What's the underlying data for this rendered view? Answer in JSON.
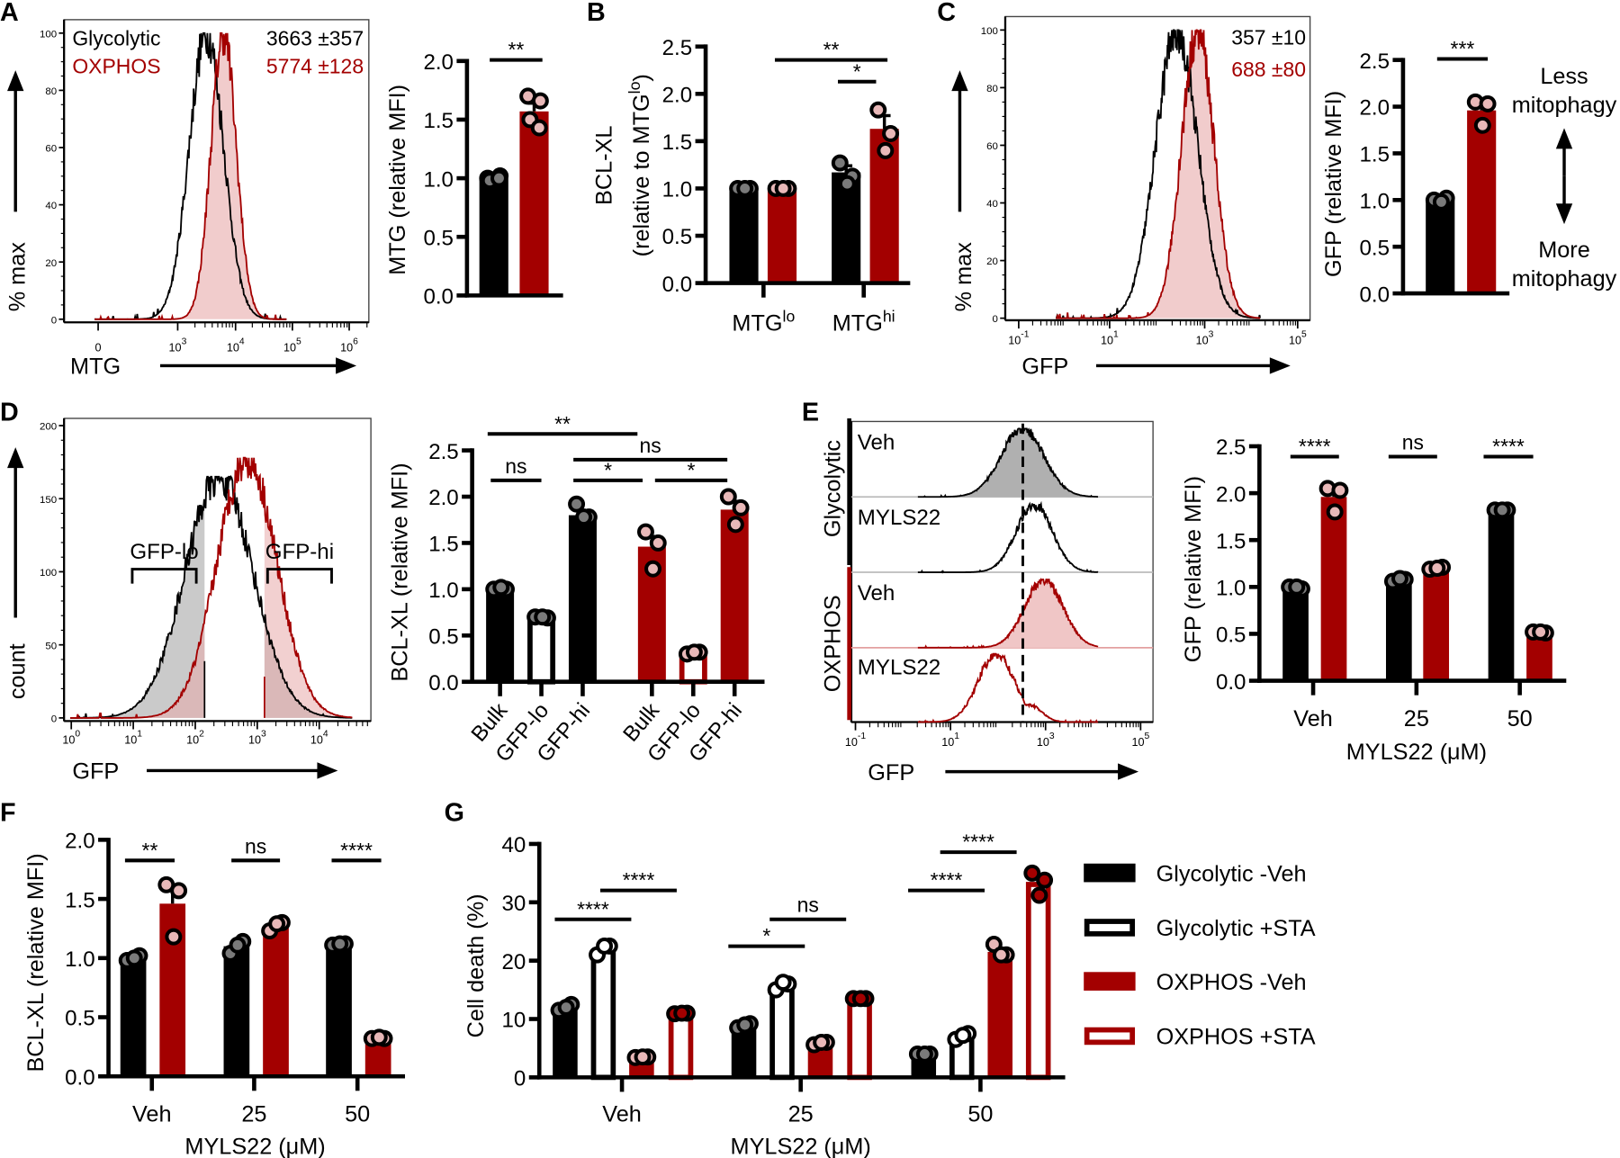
{
  "panel_labels": [
    "A",
    "B",
    "C",
    "D",
    "E",
    "F",
    "G"
  ],
  "colors": {
    "glycolytic": "#000000",
    "oxphos": "#a30000",
    "oxphos_fill": "#f0c6c6",
    "glyc_fill": "#b0b0b0",
    "point_glyc": "#7a7a7a",
    "point_oxphos": "#e8b8b8"
  },
  "chart_data": [
    {
      "id": "A-histogram",
      "type": "histogram",
      "xlabel": "MTG",
      "ylabel": "% max",
      "ylim": [
        0,
        100
      ],
      "yticks": [
        "0",
        "20",
        "40",
        "60",
        "80",
        "100"
      ],
      "xticks": [
        {
          "base": "0",
          "exp": ""
        },
        {
          "base": "10",
          "exp": "3"
        },
        {
          "base": "10",
          "exp": "4"
        },
        {
          "base": "10",
          "exp": "5"
        },
        {
          "base": "10",
          "exp": "6"
        }
      ],
      "series": [
        {
          "name": "Glycolytic",
          "mfi": "3663 ±357",
          "color": "#000000",
          "filled": false,
          "peak_log10": 3.5,
          "sd_log10": 0.3,
          "max": 100
        },
        {
          "name": "OXPHOS",
          "mfi": "5774 ±128",
          "color": "#a30000",
          "filled": true,
          "peak_log10": 3.8,
          "sd_log10": 0.22,
          "max": 100
        }
      ]
    },
    {
      "id": "A-bar",
      "type": "bar",
      "ylabel": [
        {
          "text": "MTG (relative MFI)"
        }
      ],
      "ylim": [
        0,
        2
      ],
      "yticks": [
        "0.0",
        "0.5",
        "1.0",
        "1.5",
        "2.0"
      ],
      "categories": [],
      "bars": [
        {
          "series": "Glycolytic",
          "style": "glyc",
          "value": 1.0,
          "err": 0.01,
          "points": [
            1.0,
            1.02,
            0.98,
            1.0
          ]
        },
        {
          "series": "OXPHOS",
          "style": "oxphos",
          "value": 1.57,
          "err": 0.07,
          "points": [
            1.7,
            1.66,
            1.5,
            1.43
          ]
        }
      ],
      "sig": [
        "**"
      ]
    },
    {
      "id": "B-bar",
      "type": "bar",
      "ylabel": [
        {
          "text": "BCL-XL"
        },
        {
          "text": "(relative to MTG",
          "sup": "lo",
          "tail": ")"
        }
      ],
      "ylim": [
        0,
        2.5
      ],
      "yticks": [
        "0.0",
        "0.5",
        "1.0",
        "1.5",
        "2.0",
        "2.5"
      ],
      "categories": [
        {
          "text": "MTG",
          "sup": "lo"
        },
        {
          "text": "MTG",
          "sup": "hi"
        }
      ],
      "bars": [
        {
          "series": "Glycolytic",
          "style": "glyc",
          "value": 1.0,
          "err": 0,
          "points": [
            1.0,
            1.0,
            1.0
          ]
        },
        {
          "series": "OXPHOS",
          "style": "oxphos",
          "value": 1.0,
          "err": 0,
          "points": [
            1.0,
            1.0,
            1.0
          ]
        },
        {
          "series": "Glycolytic",
          "style": "glyc",
          "value": 1.17,
          "err": 0.07,
          "points": [
            1.27,
            1.13,
            1.05
          ]
        },
        {
          "series": "OXPHOS",
          "style": "oxphos",
          "value": 1.63,
          "err": 0.14,
          "points": [
            1.83,
            1.58,
            1.4
          ]
        }
      ],
      "sig": [
        "**",
        "*"
      ]
    },
    {
      "id": "C-histogram",
      "type": "histogram",
      "xlabel": "GFP",
      "ylabel": "% max",
      "ylim": [
        0,
        100
      ],
      "yticks": [
        "0",
        "20",
        "40",
        "60",
        "80",
        "100"
      ],
      "xticks": [
        {
          "base": "10",
          "exp": "-1"
        },
        {
          "base": "10",
          "exp": "1"
        },
        {
          "base": "10",
          "exp": "3"
        },
        {
          "base": "10",
          "exp": "5"
        }
      ],
      "series": [
        {
          "name": "Glycolytic",
          "mfi": "357 ±10",
          "color": "#000000",
          "filled": false,
          "peak_log10": 2.4,
          "sd_log10": 0.45,
          "max": 100
        },
        {
          "name": "OXPHOS",
          "mfi": "688 ±80",
          "color": "#a30000",
          "filled": true,
          "peak_log10": 2.85,
          "sd_log10": 0.35,
          "max": 100
        }
      ]
    },
    {
      "id": "C-bar",
      "type": "bar",
      "ylabel": [
        {
          "text": "GFP (relative MFI)"
        }
      ],
      "ylim": [
        0,
        2.5
      ],
      "yticks": [
        "0.0",
        "0.5",
        "1.0",
        "1.5",
        "2.0",
        "2.5"
      ],
      "categories": [],
      "bars": [
        {
          "series": "Glycolytic",
          "style": "glyc",
          "value": 1.0,
          "err": 0.01,
          "points": [
            1.0,
            1.02,
            0.98
          ]
        },
        {
          "series": "OXPHOS",
          "style": "oxphos",
          "value": 1.96,
          "err": 0.07,
          "points": [
            2.05,
            2.03,
            1.8
          ]
        }
      ],
      "sig": [
        "***"
      ],
      "annotation": {
        "top": [
          "Less",
          "mitophagy"
        ],
        "bottom": [
          "More",
          "mitophagy"
        ]
      }
    },
    {
      "id": "D-histogram",
      "type": "histogram",
      "xlabel": "GFP",
      "ylabel": "count",
      "ylim": [
        0,
        200
      ],
      "yticks": [
        "0",
        "50",
        "100",
        "150",
        "200"
      ],
      "xticks": [
        {
          "base": "10",
          "exp": "0"
        },
        {
          "base": "10",
          "exp": "1"
        },
        {
          "base": "10",
          "exp": "2"
        },
        {
          "base": "10",
          "exp": "3"
        },
        {
          "base": "10",
          "exp": "4"
        }
      ],
      "gates": [
        "GFP-lo",
        "GFP-hi"
      ],
      "series": [
        {
          "name": "Glycolytic",
          "color": "#000000",
          "filled": false,
          "peak_log10": 2.45,
          "sd_log10": 0.55,
          "max": 165
        },
        {
          "name": "OXPHOS",
          "color": "#a30000",
          "filled": false,
          "peak_log10": 2.9,
          "sd_log10": 0.48,
          "max": 178
        }
      ]
    },
    {
      "id": "D-bar",
      "type": "bar",
      "ylabel": [
        {
          "text": "BCL-XL (relative MFI)"
        }
      ],
      "ylim": [
        0,
        2.5
      ],
      "yticks": [
        "0.0",
        "0.5",
        "1.0",
        "1.5",
        "2.0",
        "2.5"
      ],
      "categories": [
        "Bulk",
        "GFP-lo",
        "GFP-hi",
        "Bulk",
        "GFP-lo",
        "GFP-hi"
      ],
      "bars": [
        {
          "series": "Glycolytic Bulk",
          "style": "glyc",
          "value": 1.0,
          "err": 0.01,
          "points": [
            1.0,
            1.0,
            1.02
          ]
        },
        {
          "series": "Glycolytic GFP-lo",
          "style": "glyc-open",
          "value": 0.7,
          "err": 0,
          "points": [
            0.7,
            0.69,
            0.7
          ]
        },
        {
          "series": "Glycolytic GFP-hi",
          "style": "glyc",
          "value": 1.8,
          "err": 0.04,
          "points": [
            1.92,
            1.78,
            1.78
          ]
        },
        {
          "series": "OXPHOS Bulk",
          "style": "oxphos",
          "value": 1.46,
          "err": 0.11,
          "points": [
            1.62,
            1.5,
            1.22
          ]
        },
        {
          "series": "OXPHOS GFP-lo",
          "style": "oxphos-open",
          "value": 0.32,
          "err": 0,
          "points": [
            0.3,
            0.32,
            0.32
          ]
        },
        {
          "series": "OXPHOS GFP-hi",
          "style": "oxphos",
          "value": 1.86,
          "err": 0.09,
          "points": [
            2.0,
            1.88,
            1.7
          ]
        }
      ],
      "sig": [
        "**",
        "ns",
        "ns",
        "*",
        "*"
      ]
    },
    {
      "id": "E-histogram",
      "type": "histogram",
      "xlabel": "GFP",
      "xticks": [
        {
          "base": "10",
          "exp": "-1"
        },
        {
          "base": "10",
          "exp": "1"
        },
        {
          "base": "10",
          "exp": "3"
        },
        {
          "base": "10",
          "exp": "5"
        }
      ],
      "groups": [
        "Glycolytic",
        "OXPHOS"
      ],
      "rows": [
        {
          "group": "Glycolytic",
          "label": "Veh",
          "color": "#000000",
          "filled": true,
          "peak_log10": 2.6,
          "sd_log10": 0.45
        },
        {
          "group": "Glycolytic",
          "label": "MYLS22",
          "color": "#000000",
          "filled": false,
          "peak_log10": 2.85,
          "sd_log10": 0.38
        },
        {
          "group": "OXPHOS",
          "label": "Veh",
          "color": "#a30000",
          "filled": true,
          "peak_log10": 3.05,
          "sd_log10": 0.4
        },
        {
          "group": "OXPHOS",
          "label": "MYLS22",
          "color": "#a30000",
          "filled": false,
          "peak_log10": 2.05,
          "sd_log10": 0.38
        }
      ]
    },
    {
      "id": "E-bar",
      "type": "bar",
      "ylabel": [
        {
          "text": "GFP (relative MFI)"
        }
      ],
      "xlabel": "MYLS22 (μM)",
      "ylim": [
        0,
        2.5
      ],
      "yticks": [
        "0.0",
        "0.5",
        "1.0",
        "1.5",
        "2.0",
        "2.5"
      ],
      "categories": [
        "Veh",
        "25",
        "50"
      ],
      "bars": [
        {
          "series": "Glycolytic",
          "style": "glyc",
          "value": 1.0,
          "err": 0.01,
          "points": [
            1.0,
            0.98,
            1.0
          ]
        },
        {
          "series": "OXPHOS",
          "style": "oxphos",
          "value": 1.96,
          "err": 0.07,
          "points": [
            2.05,
            2.03,
            1.8
          ]
        },
        {
          "series": "Glycolytic",
          "style": "glyc",
          "value": 1.08,
          "err": 0.01,
          "points": [
            1.06,
            1.08,
            1.09
          ]
        },
        {
          "series": "OXPHOS",
          "style": "oxphos",
          "value": 1.2,
          "err": 0.01,
          "points": [
            1.19,
            1.21,
            1.2
          ]
        },
        {
          "series": "Glycolytic",
          "style": "glyc",
          "value": 1.82,
          "err": 0.01,
          "points": [
            1.82,
            1.82,
            1.82
          ]
        },
        {
          "series": "OXPHOS",
          "style": "oxphos",
          "value": 0.52,
          "err": 0.01,
          "points": [
            0.52,
            0.51,
            0.52
          ]
        }
      ],
      "sig": [
        "****",
        "ns",
        "****"
      ]
    },
    {
      "id": "F-bar",
      "type": "bar",
      "ylabel": [
        {
          "text": "BCL-XL (relative MFI)"
        }
      ],
      "xlabel": "MYLS22 (μM)",
      "ylim": [
        0,
        2
      ],
      "yticks": [
        "0.0",
        "0.5",
        "1.0",
        "1.5",
        "2.0"
      ],
      "categories": [
        "Veh",
        "25",
        "50"
      ],
      "bars": [
        {
          "series": "Glycolytic",
          "style": "glyc",
          "value": 1.0,
          "err": 0.01,
          "points": [
            0.98,
            1.02,
            1.0
          ]
        },
        {
          "series": "OXPHOS",
          "style": "oxphos",
          "value": 1.46,
          "err": 0.13,
          "points": [
            1.62,
            1.57,
            1.18
          ]
        },
        {
          "series": "Glycolytic",
          "style": "glyc",
          "value": 1.1,
          "err": 0.03,
          "points": [
            1.04,
            1.14,
            1.11
          ]
        },
        {
          "series": "OXPHOS",
          "style": "oxphos",
          "value": 1.27,
          "err": 0.02,
          "points": [
            1.23,
            1.3,
            1.29
          ]
        },
        {
          "series": "Glycolytic",
          "style": "glyc",
          "value": 1.12,
          "err": 0.01,
          "points": [
            1.11,
            1.12,
            1.12
          ]
        },
        {
          "series": "OXPHOS",
          "style": "oxphos",
          "value": 0.32,
          "err": 0.01,
          "points": [
            0.32,
            0.32,
            0.33
          ]
        }
      ],
      "sig": [
        "**",
        "ns",
        "****"
      ]
    },
    {
      "id": "G-bar",
      "type": "bar",
      "ylabel": [
        {
          "text": "Cell death (%)"
        }
      ],
      "xlabel": "MYLS22 (μM)",
      "ylim": [
        0,
        40
      ],
      "yticks": [
        "0",
        "10",
        "20",
        "30",
        "40"
      ],
      "categories": [
        "Veh",
        "25",
        "50"
      ],
      "open_points_white": true,
      "legend": [
        {
          "name": "Glycolytic -Veh",
          "style": "glyc"
        },
        {
          "name": "Glycolytic +STA",
          "style": "glyc-open"
        },
        {
          "name": "OXPHOS -Veh",
          "style": "oxphos"
        },
        {
          "name": "OXPHOS +STA",
          "style": "oxphos-open"
        }
      ],
      "bars": [
        {
          "series": "Glycolytic -Veh",
          "style": "glyc",
          "value": 12,
          "err": 0.4,
          "points": [
            11.5,
            12.5,
            12
          ]
        },
        {
          "series": "Glycolytic +STA",
          "style": "glyc-open",
          "value": 22,
          "err": 0.5,
          "points": [
            21,
            22.5,
            22.5
          ]
        },
        {
          "series": "OXPHOS -Veh",
          "style": "oxphos",
          "value": 3.5,
          "err": 0.1,
          "points": [
            3.4,
            3.5,
            3.5
          ]
        },
        {
          "series": "OXPHOS +STA",
          "style": "oxphos-open",
          "value": 11,
          "err": 0.1,
          "points": [
            10.9,
            11,
            11
          ]
        },
        {
          "series": "Glycolytic -Veh",
          "style": "glyc",
          "value": 9,
          "err": 0.3,
          "points": [
            8.5,
            9.2,
            9
          ]
        },
        {
          "series": "Glycolytic +STA",
          "style": "glyc-open",
          "value": 15.5,
          "err": 0.5,
          "points": [
            15,
            16,
            16.3
          ]
        },
        {
          "series": "OXPHOS -Veh",
          "style": "oxphos",
          "value": 6,
          "err": 0.2,
          "points": [
            5.6,
            6,
            6
          ]
        },
        {
          "series": "OXPHOS +STA",
          "style": "oxphos-open",
          "value": 13.5,
          "err": 0.1,
          "points": [
            13.5,
            13.5,
            13.5
          ]
        },
        {
          "series": "Glycolytic -Veh",
          "style": "glyc",
          "value": 4,
          "err": 0.1,
          "points": [
            4,
            4,
            4
          ]
        },
        {
          "series": "Glycolytic +STA",
          "style": "glyc-open",
          "value": 7,
          "err": 0.3,
          "points": [
            6.5,
            7.5,
            7.2
          ]
        },
        {
          "series": "OXPHOS -Veh",
          "style": "oxphos",
          "value": 21.5,
          "err": 0.5,
          "points": [
            22.8,
            21,
            21
          ]
        },
        {
          "series": "OXPHOS +STA",
          "style": "oxphos-open",
          "value": 33.5,
          "err": 1.1,
          "points": [
            35,
            33.8,
            31.2
          ]
        }
      ],
      "sig": [
        "****",
        "****",
        "*",
        "ns",
        "****",
        "****"
      ]
    }
  ]
}
